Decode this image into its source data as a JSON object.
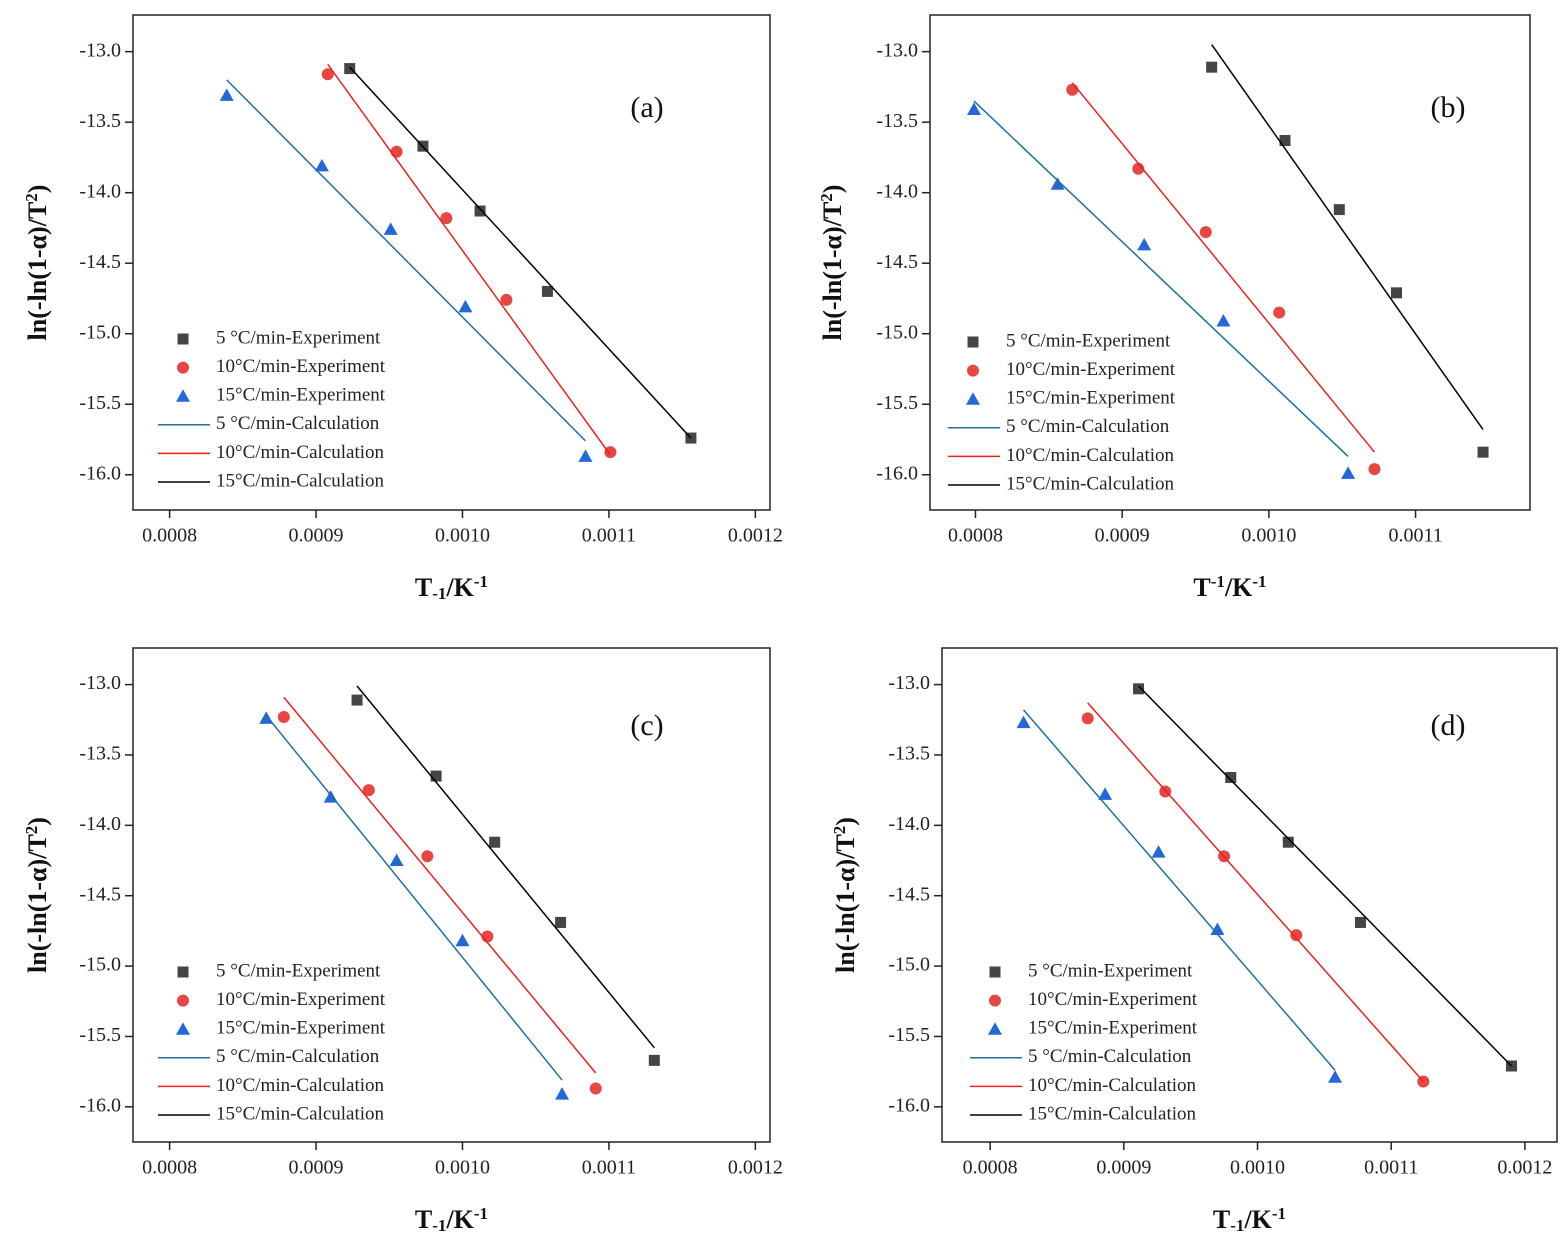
{
  "chart_data": [
    {
      "type": "scatter",
      "annotation": "(a)",
      "xlabel": [
        "T",
        "-1",
        "/K",
        "-1"
      ],
      "xlabel_script": [
        "normal",
        "sub",
        "normal",
        "sup"
      ],
      "ylabel": [
        "ln(-ln(1-α)/T",
        "2",
        ")"
      ],
      "ylabel_script": [
        "normal",
        "sup",
        "normal"
      ],
      "xlim": [
        0.000775,
        0.00121
      ],
      "ylim": [
        -16.25,
        -12.74
      ],
      "xticks": [
        0.0008,
        0.0009,
        {
          "value": 0.001,
          "label": "0.0010"
        },
        0.0011,
        0.0012
      ],
      "yticks": [
        {
          "value": -13,
          "label": "-13.0"
        },
        -13.5,
        {
          "value": -14,
          "label": "-14.0"
        },
        -14.5,
        {
          "value": -15,
          "label": "-15.0"
        },
        -15.5,
        {
          "value": -16,
          "label": "-16.0"
        }
      ],
      "series": [
        {
          "name": "5 °C/min-Experiment",
          "mode": "markers",
          "marker": "square",
          "color": "#454545",
          "x": [
            0.000923,
            0.000973,
            0.001012,
            0.001058,
            0.001156
          ],
          "values": [
            -13.12,
            -13.67,
            -14.13,
            -14.7,
            -15.74
          ]
        },
        {
          "name": "10°C/min-Experiment",
          "mode": "markers",
          "marker": "circle",
          "color": "#e84545",
          "x": [
            0.000908,
            0.000955,
            0.000989,
            0.00103,
            0.001101
          ],
          "values": [
            -13.16,
            -13.71,
            -14.18,
            -14.76,
            -15.84
          ]
        },
        {
          "name": "15°C/min-Experiment",
          "mode": "markers",
          "marker": "triangle",
          "color": "#2468d8",
          "x": [
            0.000839,
            0.000904,
            0.000951,
            0.001002,
            0.001084
          ],
          "values": [
            -13.31,
            -13.81,
            -14.26,
            -14.81,
            -15.87
          ]
        },
        {
          "name": "5 °C/min-Calculation",
          "mode": "line",
          "color": "#1f6fa3",
          "x": [
            0.000839,
            0.001084
          ],
          "values": [
            -13.2,
            -15.76
          ]
        },
        {
          "name": "10°C/min-Calculation",
          "mode": "line",
          "color": "#e8231f",
          "x": [
            0.000908,
            0.001101
          ],
          "values": [
            -13.09,
            -15.86
          ]
        },
        {
          "name": "15°C/min-Calculation",
          "mode": "line",
          "color": "#000000",
          "x": [
            0.000923,
            0.001156
          ],
          "values": [
            -13.11,
            -15.74
          ]
        }
      ]
    },
    {
      "type": "scatter",
      "annotation": "(b)",
      "xlabel": [
        "T",
        "-1",
        "/K",
        "-1"
      ],
      "xlabel_script": [
        "normal",
        "sup",
        "normal",
        "sup"
      ],
      "ylabel": [
        "ln(-ln(1-α)/T",
        "2",
        ")"
      ],
      "ylabel_script": [
        "normal",
        "sup",
        "normal"
      ],
      "xlim": [
        0.000769,
        0.001178
      ],
      "ylim": [
        -16.25,
        -12.74
      ],
      "xticks": [
        0.0008,
        0.0009,
        {
          "value": 0.001,
          "label": "0.0010"
        },
        0.0011
      ],
      "yticks": [
        {
          "value": -13,
          "label": "-13.0"
        },
        -13.5,
        {
          "value": -14,
          "label": "-14.0"
        },
        -14.5,
        {
          "value": -15,
          "label": "-15.0"
        },
        -15.5,
        {
          "value": -16,
          "label": "-16.0"
        }
      ],
      "series": [
        {
          "name": "5 °C/min-Experiment",
          "mode": "markers",
          "marker": "square",
          "color": "#454545",
          "x": [
            0.000961,
            0.001011,
            0.001048,
            0.001087,
            0.001146
          ],
          "values": [
            -13.11,
            -13.63,
            -14.12,
            -14.71,
            -15.84
          ]
        },
        {
          "name": "10°C/min-Experiment",
          "mode": "markers",
          "marker": "circle",
          "color": "#e84545",
          "x": [
            0.000866,
            0.000911,
            0.000957,
            0.001007,
            0.001072
          ],
          "values": [
            -13.27,
            -13.83,
            -14.28,
            -14.85,
            -15.96
          ]
        },
        {
          "name": "15°C/min-Experiment",
          "mode": "markers",
          "marker": "triangle",
          "color": "#2468d8",
          "x": [
            0.000799,
            0.000856,
            0.000915,
            0.000969,
            0.001054
          ],
          "values": [
            -13.41,
            -13.94,
            -14.37,
            -14.91,
            -15.99
          ]
        },
        {
          "name": "5 °C/min-Calculation",
          "mode": "line",
          "color": "#1f6fa3",
          "x": [
            0.000799,
            0.001054
          ],
          "values": [
            -13.35,
            -15.87
          ]
        },
        {
          "name": "10°C/min-Calculation",
          "mode": "line",
          "color": "#e8231f",
          "x": [
            0.000866,
            0.001072
          ],
          "values": [
            -13.22,
            -15.84
          ]
        },
        {
          "name": "15°C/min-Calculation",
          "mode": "line",
          "color": "#000000",
          "x": [
            0.000961,
            0.001146
          ],
          "values": [
            -12.95,
            -15.68
          ]
        }
      ]
    },
    {
      "type": "scatter",
      "annotation": "(c)",
      "xlabel": [
        "T",
        "-1",
        "/K",
        "-1"
      ],
      "xlabel_script": [
        "normal",
        "sub",
        "normal",
        "sup"
      ],
      "ylabel": [
        "ln(-ln(1-α)/T",
        "2",
        ")"
      ],
      "ylabel_script": [
        "normal",
        "sup",
        "normal"
      ],
      "xlim": [
        0.000775,
        0.00121
      ],
      "ylim": [
        -16.25,
        -12.74
      ],
      "xticks": [
        0.0008,
        0.0009,
        {
          "value": 0.001,
          "label": "0.0010"
        },
        0.0011,
        0.0012
      ],
      "yticks": [
        {
          "value": -13,
          "label": "-13.0"
        },
        -13.5,
        {
          "value": -14,
          "label": "-14.0"
        },
        -14.5,
        {
          "value": -15,
          "label": "-15.0"
        },
        -15.5,
        {
          "value": -16,
          "label": "-16.0"
        }
      ],
      "series": [
        {
          "name": "5 °C/min-Experiment",
          "mode": "markers",
          "marker": "square",
          "color": "#454545",
          "x": [
            0.000928,
            0.000982,
            0.001022,
            0.001067,
            0.001131
          ],
          "values": [
            -13.11,
            -13.65,
            -14.12,
            -14.69,
            -15.67
          ]
        },
        {
          "name": "10°C/min-Experiment",
          "mode": "markers",
          "marker": "circle",
          "color": "#e84545",
          "x": [
            0.000878,
            0.000936,
            0.000976,
            0.001017,
            0.001091
          ],
          "values": [
            -13.23,
            -13.75,
            -14.22,
            -14.79,
            -15.87
          ]
        },
        {
          "name": "15°C/min-Experiment",
          "mode": "markers",
          "marker": "triangle",
          "color": "#2468d8",
          "x": [
            0.000866,
            0.00091,
            0.000955,
            0.001,
            0.001068
          ],
          "values": [
            -13.24,
            -13.8,
            -14.25,
            -14.82,
            -15.91
          ]
        },
        {
          "name": "5 °C/min-Calculation",
          "mode": "line",
          "color": "#1f6fa3",
          "x": [
            0.000866,
            0.001068
          ],
          "values": [
            -13.22,
            -15.81
          ]
        },
        {
          "name": "10°C/min-Calculation",
          "mode": "line",
          "color": "#e8231f",
          "x": [
            0.000878,
            0.001091
          ],
          "values": [
            -13.09,
            -15.76
          ]
        },
        {
          "name": "15°C/min-Calculation",
          "mode": "line",
          "color": "#000000",
          "x": [
            0.000928,
            0.001131
          ],
          "values": [
            -13.01,
            -15.58
          ]
        }
      ]
    },
    {
      "type": "scatter",
      "annotation": "(d)",
      "xlabel": [
        "T",
        "-1",
        "/K",
        "-1"
      ],
      "xlabel_script": [
        "normal",
        "sub",
        "normal",
        "sup"
      ],
      "ylabel": [
        "ln(-ln(1-α)/T",
        "2",
        ")"
      ],
      "ylabel_script": [
        "normal",
        "sup",
        "normal"
      ],
      "xlim": [
        0.000764,
        0.001224
      ],
      "ylim": [
        -16.25,
        -12.74
      ],
      "xticks": [
        0.0008,
        0.0009,
        {
          "value": 0.001,
          "label": "0.0010"
        },
        0.0011,
        0.0012
      ],
      "yticks": [
        {
          "value": -13,
          "label": "-13.0"
        },
        -13.5,
        {
          "value": -14,
          "label": "-14.0"
        },
        -14.5,
        {
          "value": -15,
          "label": "-15.0"
        },
        -15.5,
        {
          "value": -16,
          "label": "-16.0"
        }
      ],
      "series": [
        {
          "name": "5 °C/min-Experiment",
          "mode": "markers",
          "marker": "square",
          "color": "#454545",
          "x": [
            0.000911,
            0.00098,
            0.001023,
            0.001077,
            0.00119
          ],
          "values": [
            -13.03,
            -13.66,
            -14.12,
            -14.69,
            -15.71
          ]
        },
        {
          "name": "10°C/min-Experiment",
          "mode": "markers",
          "marker": "circle",
          "color": "#e84545",
          "x": [
            0.000873,
            0.000931,
            0.000975,
            0.001029,
            0.001124
          ],
          "values": [
            -13.24,
            -13.76,
            -14.22,
            -14.78,
            -15.82
          ]
        },
        {
          "name": "15°C/min-Experiment",
          "mode": "markers",
          "marker": "triangle",
          "color": "#2468d8",
          "x": [
            0.000825,
            0.000886,
            0.000926,
            0.00097,
            0.001058
          ],
          "values": [
            -13.27,
            -13.78,
            -14.19,
            -14.74,
            -15.79
          ]
        },
        {
          "name": "5 °C/min-Calculation",
          "mode": "line",
          "color": "#1f6fa3",
          "x": [
            0.000825,
            0.001058
          ],
          "values": [
            -13.18,
            -15.74
          ]
        },
        {
          "name": "10°C/min-Calculation",
          "mode": "line",
          "color": "#e8231f",
          "x": [
            0.000873,
            0.001124
          ],
          "values": [
            -13.13,
            -15.82
          ]
        },
        {
          "name": "15°C/min-Calculation",
          "mode": "line",
          "color": "#000000",
          "x": [
            0.000911,
            0.00119
          ],
          "values": [
            -13.01,
            -15.71
          ]
        }
      ]
    }
  ]
}
